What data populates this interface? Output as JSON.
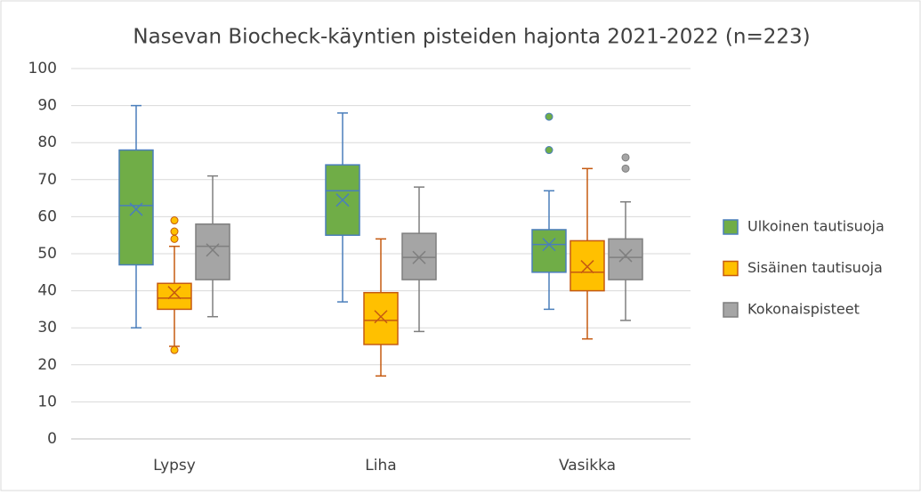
{
  "chart_data": {
    "type": "box",
    "title": "Nasevan Biocheck-käyntien pisteiden hajonta 2021-2022 (n=223)",
    "categories": [
      "Lypsy",
      "Liha",
      "Vasikka"
    ],
    "ylim": [
      0,
      100
    ],
    "yticks": [
      0,
      10,
      20,
      30,
      40,
      50,
      60,
      70,
      80,
      90,
      100
    ],
    "grid": true,
    "legend": "right",
    "series": [
      {
        "name": "Ulkoinen tautisuoja",
        "color": "#70ad47",
        "stroke": "#4a7ebb",
        "min": [
          30,
          37,
          35
        ],
        "q1": [
          47,
          55,
          45
        ],
        "median": [
          63,
          67,
          52.5
        ],
        "q3": [
          78,
          74,
          56.5
        ],
        "max": [
          90,
          88,
          67
        ],
        "mean": [
          62,
          64.5,
          52.5
        ],
        "outliers": [
          [],
          [],
          [
            87,
            78
          ]
        ]
      },
      {
        "name": "Sisäinen tautisuoja",
        "color": "#ffc000",
        "stroke": "#c55a11",
        "min": [
          25,
          17,
          27
        ],
        "q1": [
          35,
          25.5,
          40
        ],
        "median": [
          38,
          32,
          45
        ],
        "q3": [
          42,
          39.5,
          53.5
        ],
        "max": [
          52,
          54,
          73
        ],
        "mean": [
          39.5,
          33,
          46.5
        ],
        "outliers": [
          [
            59,
            56,
            54,
            24
          ],
          [],
          []
        ]
      },
      {
        "name": "Kokonaispisteet",
        "color": "#a5a5a5",
        "stroke": "#7f7f7f",
        "min": [
          33,
          29,
          32
        ],
        "q1": [
          43,
          43,
          43
        ],
        "median": [
          52,
          49,
          49
        ],
        "q3": [
          58,
          55.5,
          54
        ],
        "max": [
          71,
          68,
          64
        ],
        "mean": [
          51,
          49,
          49.5
        ],
        "outliers": [
          [],
          [],
          [
            76,
            73
          ]
        ]
      }
    ]
  }
}
